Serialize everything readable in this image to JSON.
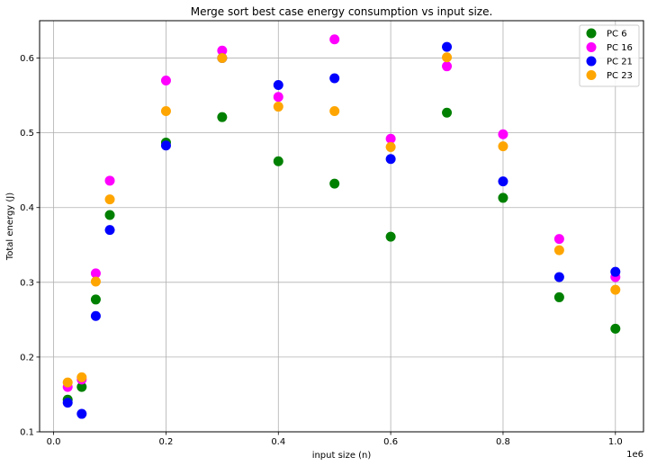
{
  "chart_data": {
    "type": "scatter",
    "title": "Merge sort best case energy consumption vs input size.",
    "xlabel": "input size (n)",
    "ylabel": "Total energy (J)",
    "x_offset_text": "1e6",
    "xlim": [
      -0.025,
      1.05
    ],
    "ylim": [
      0.1,
      0.65
    ],
    "xticks": [
      0.0,
      0.2,
      0.4,
      0.6,
      0.8,
      1.0
    ],
    "xtick_labels": [
      "0.0",
      "0.2",
      "0.4",
      "0.6",
      "0.8",
      "1.0"
    ],
    "yticks": [
      0.1,
      0.2,
      0.3,
      0.4,
      0.5,
      0.6
    ],
    "ytick_labels": [
      "0.1",
      "0.2",
      "0.3",
      "0.4",
      "0.5",
      "0.6"
    ],
    "grid": true,
    "legend_position": "top-right",
    "x": [
      0.025,
      0.05,
      0.075,
      0.1,
      0.2,
      0.3,
      0.4,
      0.5,
      0.6,
      0.7,
      0.8,
      0.9,
      1.0
    ],
    "series": [
      {
        "name": "PC 6",
        "color": "#008000",
        "values": [
          0.143,
          0.16,
          0.277,
          0.39,
          0.487,
          0.521,
          0.462,
          0.432,
          0.361,
          0.527,
          0.413,
          0.28,
          0.238
        ]
      },
      {
        "name": "PC 16",
        "color": "#ff00ff",
        "values": [
          0.16,
          0.17,
          0.312,
          0.436,
          0.57,
          0.61,
          0.548,
          0.625,
          0.492,
          0.589,
          0.498,
          0.358,
          0.307
        ]
      },
      {
        "name": "PC 21",
        "color": "#0000ff",
        "values": [
          0.139,
          0.124,
          0.255,
          0.37,
          0.483,
          0.6,
          0.564,
          0.573,
          0.465,
          0.615,
          0.435,
          0.307,
          0.314
        ]
      },
      {
        "name": "PC 23",
        "color": "#ffa500",
        "values": [
          0.166,
          0.173,
          0.301,
          0.411,
          0.529,
          0.6,
          0.535,
          0.529,
          0.481,
          0.601,
          0.482,
          0.343,
          0.29
        ]
      }
    ]
  }
}
